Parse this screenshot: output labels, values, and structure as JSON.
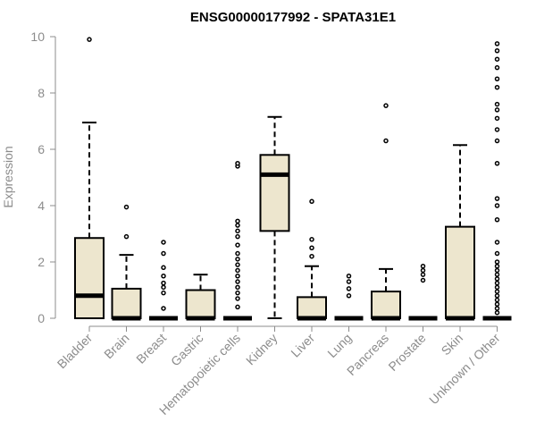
{
  "chart_data": {
    "type": "boxplot",
    "title": "ENSG00000177992 - SPATA31E1",
    "xlabel": "",
    "ylabel": "Expression",
    "ylim": [
      0,
      10
    ],
    "yticks": [
      0,
      2,
      4,
      6,
      8,
      10
    ],
    "grid": false,
    "box_fill": "#ede6ce",
    "categories": [
      "Bladder",
      "Brain",
      "Breast",
      "Gastric",
      "Hematopoietic cells",
      "Kidney",
      "Liver",
      "Lung",
      "Pancreas",
      "Prostate",
      "Skin",
      "Unknown / Other"
    ],
    "boxes": [
      {
        "min": 0,
        "q1": 0,
        "median": 0.8,
        "q3": 2.85,
        "max": 6.95,
        "outliers": [
          9.9
        ]
      },
      {
        "min": 0,
        "q1": 0,
        "median": 0,
        "q3": 1.05,
        "max": 2.25,
        "outliers": [
          2.9,
          3.95
        ]
      },
      {
        "min": 0,
        "q1": 0,
        "median": 0,
        "q3": 0,
        "max": 0,
        "outliers": [
          0.35,
          0.9,
          1.1,
          1.25,
          1.5,
          1.8,
          2.3,
          2.7
        ]
      },
      {
        "min": 0,
        "q1": 0,
        "median": 0,
        "q3": 1.0,
        "max": 1.55,
        "outliers": []
      },
      {
        "min": 0,
        "q1": 0,
        "median": 0,
        "q3": 0,
        "max": 0,
        "outliers": [
          0.4,
          0.7,
          0.9,
          1.1,
          1.3,
          1.5,
          1.7,
          1.9,
          2.1,
          2.3,
          2.6,
          2.9,
          3.1,
          3.3,
          3.45,
          5.4,
          5.5
        ]
      },
      {
        "min": 0,
        "q1": 3.1,
        "median": 5.1,
        "q3": 5.8,
        "max": 7.15,
        "outliers": []
      },
      {
        "min": 0,
        "q1": 0,
        "median": 0,
        "q3": 0.75,
        "max": 1.85,
        "outliers": [
          2.2,
          2.5,
          2.8,
          4.15
        ]
      },
      {
        "min": 0,
        "q1": 0,
        "median": 0,
        "q3": 0,
        "max": 0,
        "outliers": [
          0.8,
          1.05,
          1.3,
          1.5
        ]
      },
      {
        "min": 0,
        "q1": 0,
        "median": 0,
        "q3": 0.95,
        "max": 1.75,
        "outliers": [
          6.3,
          7.55
        ]
      },
      {
        "min": 0,
        "q1": 0,
        "median": 0,
        "q3": 0,
        "max": 0,
        "outliers": [
          1.35,
          1.55,
          1.7,
          1.85
        ]
      },
      {
        "min": 0,
        "q1": 0,
        "median": 0,
        "q3": 3.25,
        "max": 6.15,
        "outliers": []
      },
      {
        "min": 0,
        "q1": 0,
        "median": 0,
        "q3": 0,
        "max": 0,
        "outliers": [
          0.2,
          0.35,
          0.5,
          0.65,
          0.8,
          0.95,
          1.1,
          1.25,
          1.4,
          1.55,
          1.7,
          1.85,
          2.0,
          2.3,
          2.7,
          3.5,
          4.0,
          4.25,
          5.5,
          6.3,
          6.7,
          7.1,
          7.4,
          7.6,
          8.2,
          8.5,
          8.9,
          9.2,
          9.5,
          9.75
        ]
      }
    ]
  }
}
